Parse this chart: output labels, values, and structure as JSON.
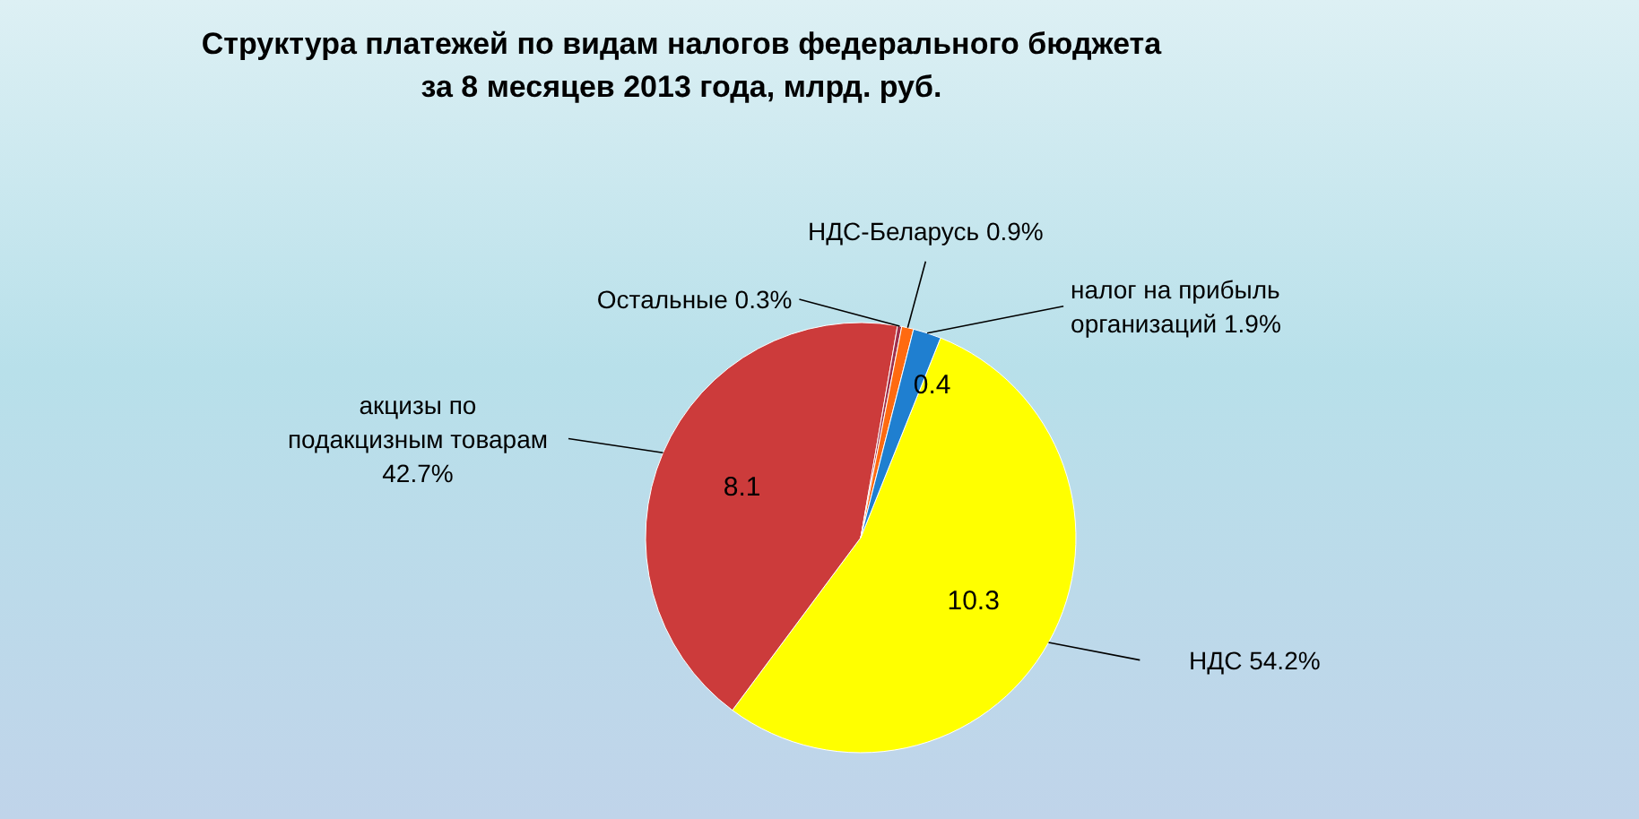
{
  "chart_data": {
    "type": "pie",
    "title": "Структура платежей по видам налогов федерального бюджета\nза 8 месяцев  2013 года, млрд. руб.",
    "categories": [
      "НДС 54.2%",
      "акцизы по\nподакцизным товарам\n42.7%",
      "Остальные 0.3%",
      "НДС-Беларусь 0.9%",
      "налог на прибыль\nорганизаций 1.9%"
    ],
    "values": [
      10.3,
      8.1,
      0.06,
      0.17,
      0.4
    ],
    "value_labels": [
      "10.3",
      "8.1",
      null,
      null,
      "0.4"
    ],
    "colors": [
      "#ffff00",
      "#cc3b3b",
      "#a0304a",
      "#ff6a10",
      "#1f7fd0"
    ]
  }
}
